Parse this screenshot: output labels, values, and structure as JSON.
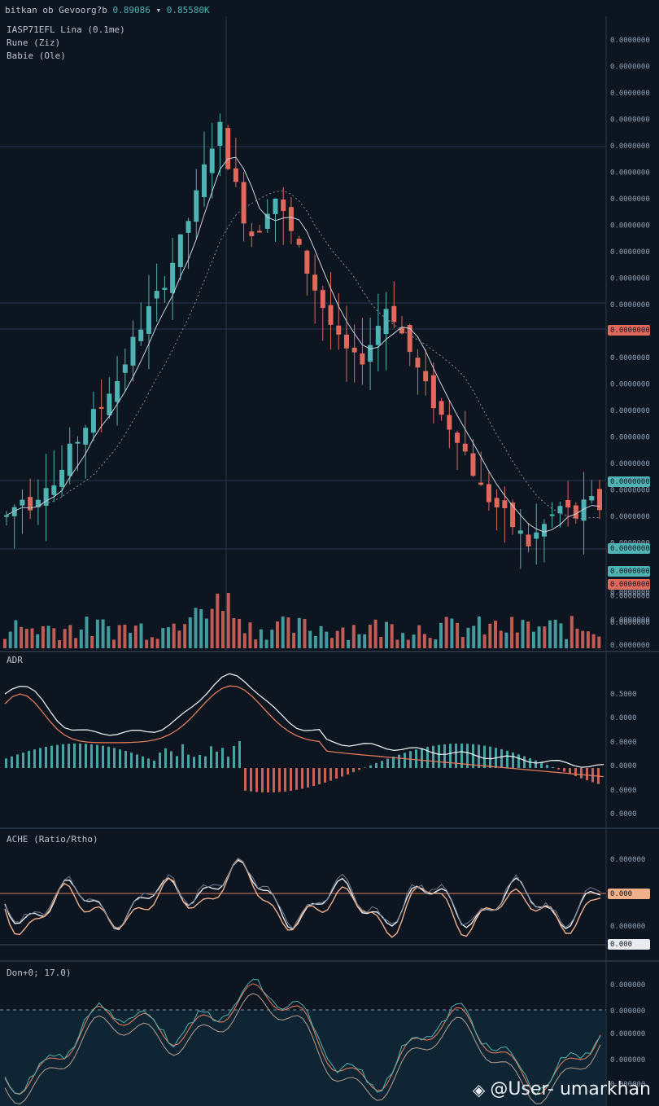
{
  "header": {
    "title_prefix": "bitkan ob Gevoorg?b",
    "title_value1": "0.89086",
    "title_sep": "▾",
    "title_value2": "0.85580K",
    "pair_label": "IASP71EFL Lina (0.1me)",
    "legend1": "Rune (Ziz)",
    "legend2": "Babie (Ole)"
  },
  "watermark": {
    "text": "@User- umarkhan"
  },
  "colors": {
    "background": "#0d1521",
    "up": "#4fb3b3",
    "down": "#e0695c",
    "grid": "#1f2c3b",
    "line_white": "#e8ecf0",
    "line_orange": "#e07a5a",
    "line_peach": "#f0b08a"
  },
  "chart_data": [
    {
      "type": "candlestick",
      "title": "",
      "y_tick_labels": [
        "0.0000000",
        "0.0000000",
        "0.0000000",
        "0.0000000",
        "0.0000000",
        "0.0000000",
        "0.0000000",
        "0.0000000",
        "0.0000000",
        "0.0000000",
        "0.0000000",
        "0.0000000",
        "0.0000000",
        "0.0000000",
        "0.0000000",
        "0.0000000",
        "0.0000000",
        "0.0000000",
        "0.0000000",
        "0.0000000",
        "0.0000000",
        "0.0000000",
        "0.0000000"
      ],
      "price_tags": [
        {
          "text": "0.0000000",
          "color": "#e0695c"
        },
        {
          "text": "0.0000000",
          "color": "#4fb3b3"
        },
        {
          "text": "0.0000000",
          "color": "#4fb3b3"
        },
        {
          "text": "0.0000000",
          "color": "#4fb3b3"
        },
        {
          "text": "0.0000000",
          "color": "#e0695c"
        }
      ],
      "close_profile": [
        10,
        12,
        14,
        13,
        15,
        18,
        17,
        20,
        24,
        27,
        30,
        32,
        34,
        38,
        40,
        44,
        48,
        52,
        55,
        58,
        62,
        66,
        70,
        75,
        80,
        86,
        92,
        95,
        88,
        82,
        76,
        72,
        74,
        78,
        80,
        76,
        72,
        68,
        64,
        60,
        56,
        52,
        48,
        46,
        44,
        45,
        48,
        52,
        56,
        54,
        50,
        46,
        42,
        38,
        35,
        32,
        30,
        28,
        24,
        20,
        16,
        14,
        12,
        10,
        8,
        6,
        4,
        6,
        8,
        10,
        12,
        11,
        10,
        12,
        13,
        12
      ]
    },
    {
      "type": "bar",
      "name": "volume",
      "y_tick_labels": [
        "0.0000000",
        "0.0000000",
        "0.0000000"
      ]
    },
    {
      "type": "line",
      "name": "MACD",
      "label": "ADR",
      "y_tick_labels": [
        "0.5000",
        "0.0000",
        "0.0000",
        "0.0000",
        "0.0000",
        "0.0000"
      ]
    },
    {
      "type": "line",
      "name": "oscillator",
      "label": "ACHE (Ratio/Rtho)",
      "y_tick_labels": [
        "0.000000",
        "0.000000"
      ],
      "tags": [
        {
          "text": "0.000",
          "color": "#f0b08a"
        },
        {
          "text": "0.000",
          "color": "#e8ecf0"
        }
      ]
    },
    {
      "type": "line",
      "name": "stochastic",
      "label": "Don+0; 17.0)",
      "y_tick_labels": [
        "0.000000",
        "0.000000",
        "0.000000",
        "0.000000",
        "0.000000"
      ]
    }
  ]
}
